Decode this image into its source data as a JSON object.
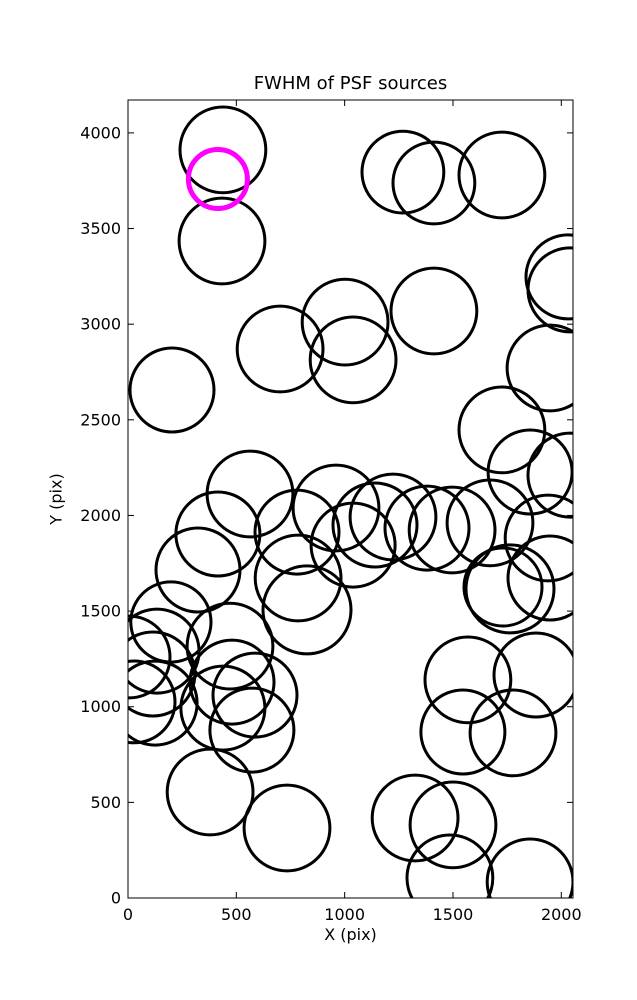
{
  "chart_data": {
    "type": "scatter",
    "title": "FWHM of PSF sources",
    "xlabel": "X (pix)",
    "ylabel": "Y (pix)",
    "xlim": [
      0,
      2054
    ],
    "ylim": [
      0,
      4172
    ],
    "xticks": [
      0,
      500,
      1000,
      1500,
      2000
    ],
    "yticks": [
      0,
      500,
      1000,
      1500,
      2000,
      2500,
      3000,
      3500,
      4000
    ],
    "grid": false,
    "legend": null,
    "marker": "open-circle",
    "point_format": [
      "x",
      "y",
      "radius"
    ],
    "series": [
      {
        "name": "psf-sources",
        "color": "#000000",
        "stroke_width": 3,
        "points": [
          [
            438,
            3911,
            198
          ],
          [
            434,
            3435,
            198
          ],
          [
            1269,
            3795,
            189
          ],
          [
            1412,
            3738,
            189
          ],
          [
            1726,
            3780,
            198
          ],
          [
            2031,
            3247,
            194
          ],
          [
            2040,
            3179,
            194
          ],
          [
            1412,
            3069,
            198
          ],
          [
            1948,
            2771,
            198
          ],
          [
            203,
            2656,
            194
          ],
          [
            702,
            2870,
            198
          ],
          [
            1002,
            3011,
            198
          ],
          [
            1039,
            2813,
            198
          ],
          [
            1726,
            2447,
            198
          ],
          [
            1856,
            2227,
            194
          ],
          [
            2040,
            2211,
            194
          ],
          [
            563,
            2112,
            198
          ],
          [
            415,
            1903,
            194
          ],
          [
            323,
            1715,
            194
          ],
          [
            198,
            1443,
            185
          ],
          [
            134,
            1291,
            194
          ],
          [
            471,
            1317,
            198
          ],
          [
            780,
            1913,
            194
          ],
          [
            960,
            2039,
            198
          ],
          [
            785,
            1673,
            198
          ],
          [
            826,
            1506,
            203
          ],
          [
            1039,
            1845,
            194
          ],
          [
            1223,
            1992,
            198
          ],
          [
            1496,
            1924,
            198
          ],
          [
            1939,
            1882,
            198
          ],
          [
            1763,
            1616,
            203
          ],
          [
            1731,
            1626,
            180
          ],
          [
            1948,
            1673,
            194
          ],
          [
            1569,
            1140,
            198
          ],
          [
            1883,
            1166,
            194
          ],
          [
            438,
            993,
            194
          ],
          [
            480,
            1129,
            194
          ],
          [
            572,
            878,
            194
          ],
          [
            586,
            1061,
            194
          ],
          [
            125,
            1019,
            194
          ],
          [
            115,
            1171,
            194
          ],
          [
            28,
            1025,
            189
          ],
          [
            5,
            1260,
            189
          ],
          [
            379,
            554,
            198
          ],
          [
            734,
            366,
            198
          ],
          [
            1546,
            868,
            194
          ],
          [
            1777,
            863,
            198
          ],
          [
            1325,
            418,
            198
          ],
          [
            1500,
            382,
            198
          ],
          [
            1486,
            105,
            198
          ],
          [
            1856,
            84,
            198
          ],
          [
            1140,
            1950,
            194
          ],
          [
            1380,
            1934,
            194
          ],
          [
            1671,
            1961,
            198
          ]
        ]
      },
      {
        "name": "highlighted-source",
        "color": "#ff00ff",
        "stroke_width": 5,
        "points": [
          [
            415,
            3759,
            136
          ]
        ]
      }
    ]
  }
}
